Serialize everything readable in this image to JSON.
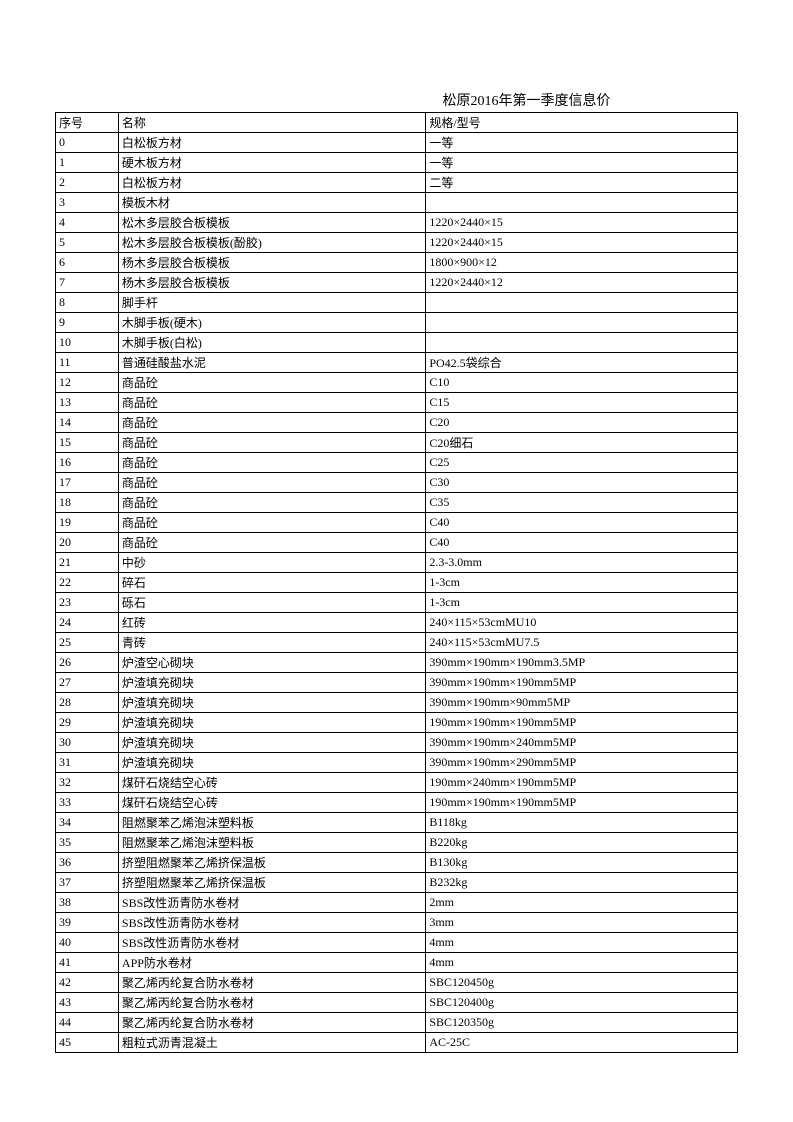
{
  "title": "松原2016年第一季度信息价",
  "headers": {
    "seq": "序号",
    "name": "名称",
    "spec": "规格/型号"
  },
  "rows": [
    {
      "seq": "0",
      "name": "白松板方材",
      "spec": "一等"
    },
    {
      "seq": "1",
      "name": "硬木板方材",
      "spec": "一等"
    },
    {
      "seq": "2",
      "name": "白松板方材",
      "spec": "二等"
    },
    {
      "seq": "3",
      "name": "模板木材",
      "spec": ""
    },
    {
      "seq": "4",
      "name": "松木多层胶合板模板",
      "spec": "1220×2440×15"
    },
    {
      "seq": "5",
      "name": "松木多层胶合板模板(酚胶)",
      "spec": "1220×2440×15"
    },
    {
      "seq": "6",
      "name": "杨木多层胶合板模板",
      "spec": "1800×900×12"
    },
    {
      "seq": "7",
      "name": "杨木多层胶合板模板",
      "spec": "1220×2440×12"
    },
    {
      "seq": "8",
      "name": "脚手杆",
      "spec": ""
    },
    {
      "seq": "9",
      "name": "木脚手板(硬木)",
      "spec": ""
    },
    {
      "seq": "10",
      "name": "木脚手板(白松)",
      "spec": ""
    },
    {
      "seq": "11",
      "name": "普通硅酸盐水泥",
      "spec": "PO42.5袋综合"
    },
    {
      "seq": "12",
      "name": "商品砼",
      "spec": "C10"
    },
    {
      "seq": "13",
      "name": "商品砼",
      "spec": "C15"
    },
    {
      "seq": "14",
      "name": "商品砼",
      "spec": "C20"
    },
    {
      "seq": "15",
      "name": "商品砼",
      "spec": "C20细石"
    },
    {
      "seq": "16",
      "name": "商品砼",
      "spec": "C25"
    },
    {
      "seq": "17",
      "name": "商品砼",
      "spec": "C30"
    },
    {
      "seq": "18",
      "name": "商品砼",
      "spec": "C35"
    },
    {
      "seq": "19",
      "name": "商品砼",
      "spec": "C40"
    },
    {
      "seq": "20",
      "name": "商品砼",
      "spec": "C40"
    },
    {
      "seq": "21",
      "name": "中砂",
      "spec": "2.3-3.0mm"
    },
    {
      "seq": "22",
      "name": "碎石",
      "spec": "1-3cm"
    },
    {
      "seq": "23",
      "name": "砾石",
      "spec": "1-3cm"
    },
    {
      "seq": "24",
      "name": "红砖",
      "spec": "240×115×53cmMU10"
    },
    {
      "seq": "25",
      "name": "青砖",
      "spec": "240×115×53cmMU7.5"
    },
    {
      "seq": "26",
      "name": "炉渣空心砌块",
      "spec": "390mm×190mm×190mm3.5MP"
    },
    {
      "seq": "27",
      "name": "炉渣填充砌块",
      "spec": "390mm×190mm×190mm5MP"
    },
    {
      "seq": "28",
      "name": "炉渣填充砌块",
      "spec": "390mm×190mm×90mm5MP"
    },
    {
      "seq": "29",
      "name": "炉渣填充砌块",
      "spec": "190mm×190mm×190mm5MP"
    },
    {
      "seq": "30",
      "name": "炉渣填充砌块",
      "spec": "390mm×190mm×240mm5MP"
    },
    {
      "seq": "31",
      "name": "炉渣填充砌块",
      "spec": "390mm×190mm×290mm5MP"
    },
    {
      "seq": "32",
      "name": "煤矸石烧结空心砖",
      "spec": "190mm×240mm×190mm5MP"
    },
    {
      "seq": "33",
      "name": "煤矸石烧结空心砖",
      "spec": "190mm×190mm×190mm5MP"
    },
    {
      "seq": "34",
      "name": "阻燃聚苯乙烯泡沫塑料板",
      "spec": "B118kg"
    },
    {
      "seq": "35",
      "name": "阻燃聚苯乙烯泡沫塑料板",
      "spec": "B220kg"
    },
    {
      "seq": "36",
      "name": "挤塑阻燃聚苯乙烯挤保温板",
      "spec": "B130kg"
    },
    {
      "seq": "37",
      "name": "挤塑阻燃聚苯乙烯挤保温板",
      "spec": "B232kg"
    },
    {
      "seq": "38",
      "name": "SBS改性沥青防水卷材",
      "spec": "2mm"
    },
    {
      "seq": "39",
      "name": "SBS改性沥青防水卷材",
      "spec": "3mm"
    },
    {
      "seq": "40",
      "name": "SBS改性沥青防水卷材",
      "spec": "4mm"
    },
    {
      "seq": "41",
      "name": "APP防水卷材",
      "spec": "4mm"
    },
    {
      "seq": "42",
      "name": "聚乙烯丙纶复合防水卷材",
      "spec": "SBC120450g"
    },
    {
      "seq": "43",
      "name": "聚乙烯丙纶复合防水卷材",
      "spec": "SBC120400g"
    },
    {
      "seq": "44",
      "name": "聚乙烯丙纶复合防水卷材",
      "spec": "SBC120350g"
    },
    {
      "seq": "45",
      "name": "粗粒式沥青混凝土",
      "spec": "AC-25C"
    }
  ]
}
